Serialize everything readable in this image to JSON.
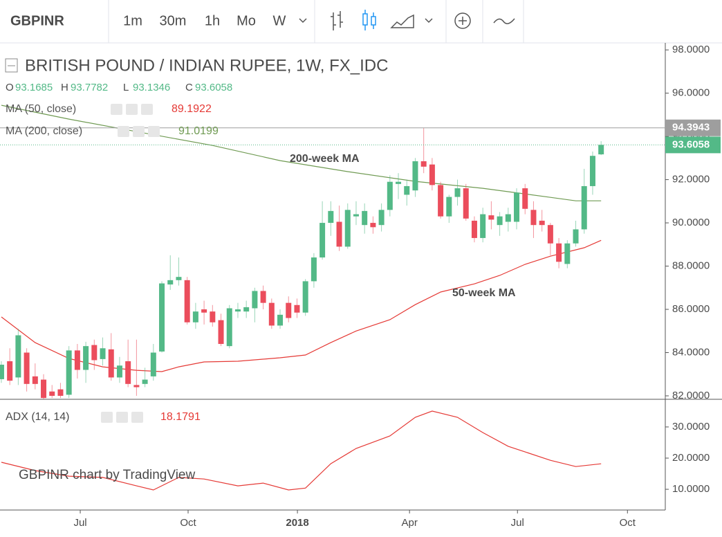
{
  "toolbar": {
    "symbol": "GBPINR",
    "intervals": [
      {
        "label": "1m"
      },
      {
        "label": "30m"
      },
      {
        "label": "1h"
      },
      {
        "label": "Mo"
      },
      {
        "label": "W",
        "active": true
      }
    ]
  },
  "watermark": "GBPINR chart by TradingView",
  "chart_data": [
    {
      "type": "candlestick",
      "title": "BRITISH POUND / INDIAN RUPEE, 1W, FX_IDC",
      "ohlc_prefixes": [
        "O",
        "H",
        "L",
        "C"
      ],
      "up_color": "#53b987",
      "down_color": "#eb4d5c",
      "x": [
        0,
        1,
        2,
        3,
        4,
        5,
        6,
        7,
        8,
        9,
        10,
        11,
        12,
        13,
        14,
        15,
        16,
        17,
        18,
        19,
        20,
        21,
        22,
        23,
        24,
        25,
        26,
        27,
        28,
        29,
        30,
        31,
        32,
        33,
        34,
        35,
        36,
        37,
        38,
        39,
        40,
        41,
        42,
        43,
        44,
        45,
        46,
        47,
        48,
        49,
        50,
        51,
        52,
        53,
        54,
        55,
        56,
        57,
        58,
        59,
        60,
        61,
        62,
        63,
        64,
        65,
        66,
        67,
        68,
        69,
        70,
        71
      ],
      "open": [
        82.77,
        83.6,
        82.85,
        84.0,
        82.9,
        82.75,
        82.2,
        82.3,
        82.05,
        84.1,
        83.2,
        84.35,
        83.7,
        84.15,
        82.85,
        83.6,
        82.5,
        82.55,
        82.9,
        84.05,
        87.15,
        87.35,
        87.35,
        85.4,
        86.0,
        85.9,
        85.5,
        84.3,
        85.9,
        85.9,
        86.05,
        86.85,
        86.3,
        85.25,
        86.3,
        86.2,
        85.85,
        87.3,
        88.4,
        90.0,
        90.05,
        88.9,
        90.3,
        89.9,
        90.0,
        89.9,
        90.6,
        91.8,
        91.3,
        91.5,
        92.85,
        92.7,
        91.75,
        90.3,
        91.2,
        91.6,
        90.1,
        89.3,
        90.35,
        89.9,
        90.05,
        90.05,
        91.6,
        90.6,
        90.1,
        89.9,
        89.05,
        88.1,
        89.05,
        89.7,
        91.7,
        93.1685
      ],
      "high": [
        83.6,
        84.2,
        85.1,
        84.2,
        83.5,
        83.0,
        82.5,
        82.6,
        84.3,
        84.4,
        84.5,
        84.6,
        84.7,
        84.9,
        83.8,
        84.6,
        84.6,
        83.3,
        84.4,
        87.3,
        88.5,
        88.4,
        87.5,
        86.3,
        86.4,
        86.2,
        85.8,
        86.2,
        86.3,
        86.4,
        87.0,
        87.1,
        86.5,
        86.0,
        86.6,
        86.5,
        87.4,
        88.6,
        91.0,
        91.0,
        90.8,
        90.9,
        91.0,
        90.9,
        90.3,
        90.9,
        92.2,
        92.3,
        92.0,
        93.0,
        94.3943,
        93.0,
        91.9,
        91.3,
        92.0,
        91.8,
        90.3,
        90.7,
        91.0,
        90.5,
        90.7,
        91.6,
        91.8,
        91.0,
        90.6,
        90.0,
        89.3,
        89.2,
        90.1,
        92.5,
        93.3,
        93.7782
      ],
      "low": [
        82.6,
        82.5,
        82.5,
        82.2,
        82.3,
        81.84,
        81.9,
        81.9,
        81.9,
        82.8,
        82.6,
        83.2,
        83.4,
        82.7,
        82.6,
        82.4,
        82.0,
        82.4,
        82.7,
        84.0,
        86.9,
        87.1,
        85.3,
        85.1,
        85.3,
        85.2,
        84.3,
        84.2,
        85.6,
        85.6,
        85.4,
        86.0,
        85.1,
        85.1,
        85.4,
        85.6,
        85.7,
        87.0,
        88.3,
        89.4,
        88.7,
        88.8,
        89.9,
        89.5,
        89.5,
        89.6,
        90.3,
        91.1,
        90.8,
        91.2,
        92.3,
        91.5,
        90.2,
        90.0,
        90.8,
        90.1,
        89.1,
        89.1,
        89.7,
        89.4,
        89.6,
        89.7,
        90.4,
        89.3,
        89.6,
        88.5,
        87.9,
        87.9,
        88.9,
        89.5,
        91.3,
        93.1346
      ],
      "close": [
        83.44,
        82.7,
        84.8,
        82.55,
        82.55,
        81.9,
        82.0,
        82.0,
        84.1,
        83.2,
        84.3,
        83.65,
        84.2,
        82.85,
        83.4,
        82.55,
        82.4,
        82.75,
        84.0,
        87.2,
        87.35,
        87.5,
        85.4,
        85.9,
        85.85,
        85.4,
        84.4,
        86.05,
        86.0,
        86.1,
        86.85,
        86.3,
        85.25,
        85.75,
        85.6,
        85.85,
        87.3,
        88.4,
        90.0,
        90.55,
        88.9,
        90.6,
        90.4,
        90.55,
        89.8,
        90.6,
        91.9,
        91.9,
        91.7,
        92.85,
        92.6,
        91.75,
        90.3,
        91.2,
        91.6,
        90.2,
        89.3,
        90.4,
        90.15,
        90.3,
        90.4,
        91.4,
        90.65,
        89.9,
        89.9,
        89.05,
        88.2,
        89.05,
        89.7,
        91.7,
        93.1,
        93.6058
      ],
      "lines": [
        {
          "name": "MA (50, close)",
          "color": "#e53935",
          "x": [
            0,
            4,
            8,
            12,
            16,
            19,
            21,
            24,
            28,
            33,
            36,
            39,
            42,
            46,
            49,
            52,
            56,
            59,
            62,
            65,
            69,
            71
          ],
          "values": [
            85.65,
            84.46,
            83.73,
            83.34,
            83.18,
            83.12,
            83.34,
            83.57,
            83.6,
            83.76,
            83.89,
            84.46,
            85.0,
            85.52,
            86.22,
            86.8,
            87.18,
            87.57,
            88.08,
            88.46,
            88.85,
            89.1922
          ]
        },
        {
          "name": "MA (200, close)",
          "color": "#6f9a52",
          "x": [
            0,
            8,
            16,
            25,
            33,
            41,
            49,
            57,
            65,
            68,
            71
          ],
          "values": [
            95.44,
            94.8,
            94.22,
            93.58,
            92.88,
            92.37,
            91.92,
            91.6,
            91.18,
            91.02,
            91.0199
          ]
        }
      ],
      "annotations": [
        "200-week MA",
        "50-week MA"
      ],
      "xlim": [
        -0.16,
        78.6
      ],
      "xticks": [
        {
          "value": 9.34,
          "label": "Jul"
        },
        {
          "value": 22.11,
          "label": "Oct"
        },
        {
          "value": 35.05,
          "label": "2018",
          "bold": true
        },
        {
          "value": 48.32,
          "label": "Apr"
        },
        {
          "value": 61.1,
          "label": "Jul"
        },
        {
          "value": 74.12,
          "label": "Oct"
        }
      ],
      "ylim": [
        81.84,
        98.26
      ],
      "yticks": [
        {
          "value": 82,
          "label": "82.0000"
        },
        {
          "value": 84,
          "label": "84.0000"
        },
        {
          "value": 86,
          "label": "86.0000"
        },
        {
          "value": 88,
          "label": "88.0000"
        },
        {
          "value": 90,
          "label": "90.0000"
        },
        {
          "value": 92,
          "label": "92.0000"
        },
        {
          "value": 94,
          "label": "94.0000"
        },
        {
          "value": 96,
          "label": "96.0000"
        },
        {
          "value": 98,
          "label": "98.0000"
        }
      ]
    },
    {
      "type": "line",
      "name": "ADX (14, 14)",
      "color": "#e53935",
      "x": [
        0,
        4,
        8,
        12,
        16,
        18,
        21,
        24,
        28,
        31,
        34,
        36,
        39,
        42,
        46,
        49,
        51,
        54,
        57,
        60,
        65,
        68,
        71
      ],
      "values": [
        18.67,
        16.0,
        14.2,
        13.8,
        11.1,
        9.8,
        13.8,
        13.3,
        11.1,
        12.0,
        9.8,
        10.4,
        18.2,
        23.1,
        27.1,
        33.1,
        35.1,
        33.1,
        28.2,
        23.8,
        19.3,
        17.3,
        18.1791
      ],
      "ylim": [
        3.8,
        38.2
      ],
      "yticks": [
        {
          "value": 10,
          "label": "10.0000"
        },
        {
          "value": 20,
          "label": "20.0000"
        },
        {
          "value": 30,
          "label": "30.0000"
        }
      ]
    }
  ]
}
